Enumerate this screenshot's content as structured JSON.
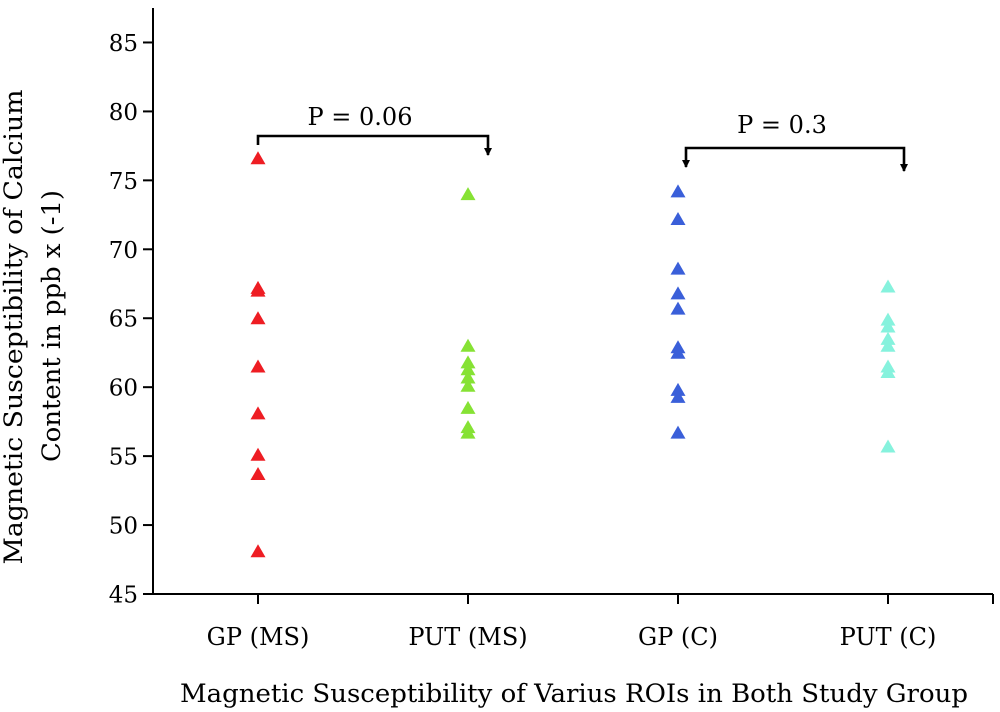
{
  "chart_data": {
    "type": "scatter",
    "marker": "triangle",
    "categories": [
      "GP (MS)",
      "PUT (MS)",
      "GP (C)",
      "PUT (C)"
    ],
    "series": [
      {
        "color": "#ee1d23",
        "values": [
          76.6,
          67.2,
          67.0,
          65.0,
          61.5,
          58.1,
          55.1,
          53.7,
          48.1
        ]
      },
      {
        "color": "#86e234",
        "values": [
          74.0,
          63.0,
          61.8,
          61.3,
          60.7,
          60.1,
          58.5,
          57.1,
          56.7
        ]
      },
      {
        "color": "#3a5fd9",
        "values": [
          74.2,
          72.2,
          68.6,
          66.8,
          65.7,
          62.9,
          62.5,
          59.8,
          59.3,
          56.7
        ]
      },
      {
        "color": "#86f2dd",
        "values": [
          67.3,
          64.9,
          64.4,
          63.5,
          63.0,
          61.5,
          61.1,
          55.7
        ]
      }
    ],
    "xlabel": "Magnetic Susceptibility of Varius ROIs in Both Study Group",
    "ylabel": [
      "Magnetic Susceptibility of Calcium",
      "Content in ppb x (-1)"
    ],
    "ylim": [
      45,
      87.5
    ],
    "yticks": [
      45,
      50,
      55,
      60,
      65,
      70,
      75,
      80,
      85
    ],
    "grid": false,
    "legend": "none",
    "annotations": [
      {
        "text": "P = 0.06",
        "between": [
          0,
          1
        ]
      },
      {
        "text": "P = 0.3",
        "between": [
          2,
          3
        ]
      }
    ]
  }
}
